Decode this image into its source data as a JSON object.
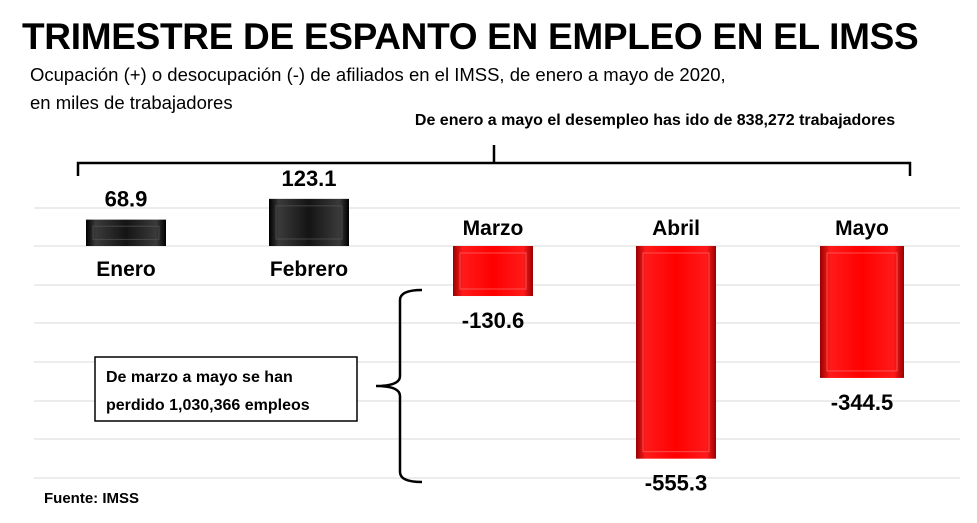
{
  "title": "TRIMESTRE DE ESPANTO EN EMPLEO EN EL IMSS",
  "subtitle_line1": "Ocupación (+) o desocupación (-) de afiliados en el IMSS, de enero a mayo de 2020,",
  "subtitle_line2": "en miles de trabajadores",
  "source": "Fuente: IMSS",
  "annotations": {
    "top_bracket_text": "De enero a mayo el desempleo has ido de 838,272 trabajadores",
    "side_box_line1": "De marzo a mayo se han",
    "side_box_line2": "perdido  1,030,366 empleos"
  },
  "colors": {
    "positive": "#111111",
    "negative": "#ff0000",
    "grid": "#d9d9d9",
    "bracket": "#000000"
  },
  "chart_data": {
    "type": "bar",
    "categories": [
      "Enero",
      "Febrero",
      "Marzo",
      "Abril",
      "Mayo"
    ],
    "values": [
      68.9,
      123.1,
      -130.6,
      -555.3,
      -344.5
    ],
    "value_labels": [
      "68.9",
      "123.1",
      "-130.6",
      "-555.3",
      "-344.5"
    ],
    "title": "TRIMESTRE DE ESPANTO EN EMPLEO EN EL IMSS",
    "xlabel": "",
    "ylabel": "",
    "grid": true,
    "legend": "none"
  }
}
